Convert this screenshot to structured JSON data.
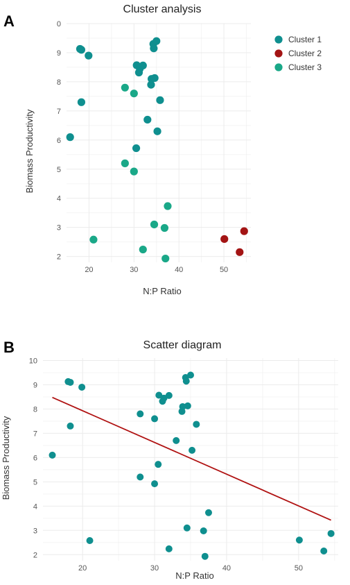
{
  "colors": {
    "cluster1": "#0f8f8f",
    "cluster2": "#a31414",
    "cluster3": "#1aa888",
    "fit_line": "#b01212"
  },
  "chart_data": [
    {
      "type": "scatter",
      "panel": "A",
      "title": "Cluster analysis",
      "xlabel": "N:P Ratio",
      "ylabel": "Biomass Productivity",
      "xlim": [
        15,
        56
      ],
      "ylim": [
        1.8,
        10
      ],
      "xticks": [
        "20",
        "30",
        "40",
        "50"
      ],
      "yticks": [
        "2",
        "3",
        "4",
        "5",
        "6",
        "7",
        "8",
        "9",
        "0"
      ],
      "legend_position": "top-right",
      "series": [
        {
          "name": "Cluster 1",
          "color": "#0f8f8f",
          "points": [
            [
              18,
              9.13
            ],
            [
              18.3,
              9.1
            ],
            [
              19.9,
              8.9
            ],
            [
              30.6,
              8.57
            ],
            [
              31.3,
              8.45
            ],
            [
              31.1,
              8.32
            ],
            [
              32.0,
              8.56
            ],
            [
              34.3,
              9.3
            ],
            [
              35.0,
              9.4
            ],
            [
              34.4,
              9.15
            ],
            [
              33.9,
              8.1
            ],
            [
              33.8,
              7.9
            ],
            [
              34.6,
              8.13
            ],
            [
              35.8,
              7.37
            ],
            [
              33,
              6.7
            ],
            [
              35.2,
              6.3
            ],
            [
              30.5,
              5.72
            ],
            [
              18.3,
              7.3
            ],
            [
              15.8,
              6.1
            ]
          ]
        },
        {
          "name": "Cluster 2",
          "color": "#a31414",
          "points": [
            [
              50.1,
              2.6
            ],
            [
              54.5,
              2.87
            ],
            [
              53.5,
              2.15
            ]
          ]
        },
        {
          "name": "Cluster 3",
          "color": "#1aa888",
          "points": [
            [
              28,
              7.8
            ],
            [
              30,
              7.6
            ],
            [
              28,
              5.2
            ],
            [
              30,
              4.92
            ],
            [
              37.5,
              3.73
            ],
            [
              34.5,
              3.1
            ],
            [
              36.8,
              2.98
            ],
            [
              21,
              2.58
            ],
            [
              32,
              2.24
            ],
            [
              37,
              1.93
            ]
          ]
        }
      ]
    },
    {
      "type": "scatter",
      "panel": "B",
      "title": "Scatter diagram",
      "xlabel": "N:P Ratio",
      "ylabel": "Biomass Productivity",
      "xlim": [
        14.5,
        55.5
      ],
      "ylim": [
        1.75,
        10.1
      ],
      "xticks": [
        "20",
        "30",
        "40",
        "50"
      ],
      "yticks": [
        "2",
        "3",
        "4",
        "5",
        "6",
        "7",
        "8",
        "9",
        "10"
      ],
      "series": [
        {
          "color": "#0f8f8f",
          "points": [
            [
              18,
              9.13
            ],
            [
              18.3,
              9.1
            ],
            [
              19.9,
              8.9
            ],
            [
              30.6,
              8.57
            ],
            [
              31.3,
              8.45
            ],
            [
              31.1,
              8.32
            ],
            [
              32.0,
              8.56
            ],
            [
              34.3,
              9.3
            ],
            [
              35.0,
              9.4
            ],
            [
              34.4,
              9.15
            ],
            [
              33.9,
              8.1
            ],
            [
              33.8,
              7.9
            ],
            [
              34.6,
              8.13
            ],
            [
              35.8,
              7.37
            ],
            [
              33,
              6.7
            ],
            [
              35.2,
              6.3
            ],
            [
              30.5,
              5.72
            ],
            [
              18.3,
              7.3
            ],
            [
              15.8,
              6.1
            ],
            [
              28,
              7.8
            ],
            [
              30,
              7.6
            ],
            [
              28,
              5.2
            ],
            [
              30,
              4.92
            ],
            [
              37.5,
              3.73
            ],
            [
              34.5,
              3.1
            ],
            [
              36.8,
              2.98
            ],
            [
              21,
              2.58
            ],
            [
              32,
              2.24
            ],
            [
              37,
              1.93
            ],
            [
              50.1,
              2.6
            ],
            [
              54.5,
              2.87
            ],
            [
              53.5,
              2.15
            ]
          ]
        }
      ],
      "fit_line": {
        "x": [
          15.8,
          54.5
        ],
        "y": [
          8.48,
          3.42
        ]
      }
    }
  ]
}
